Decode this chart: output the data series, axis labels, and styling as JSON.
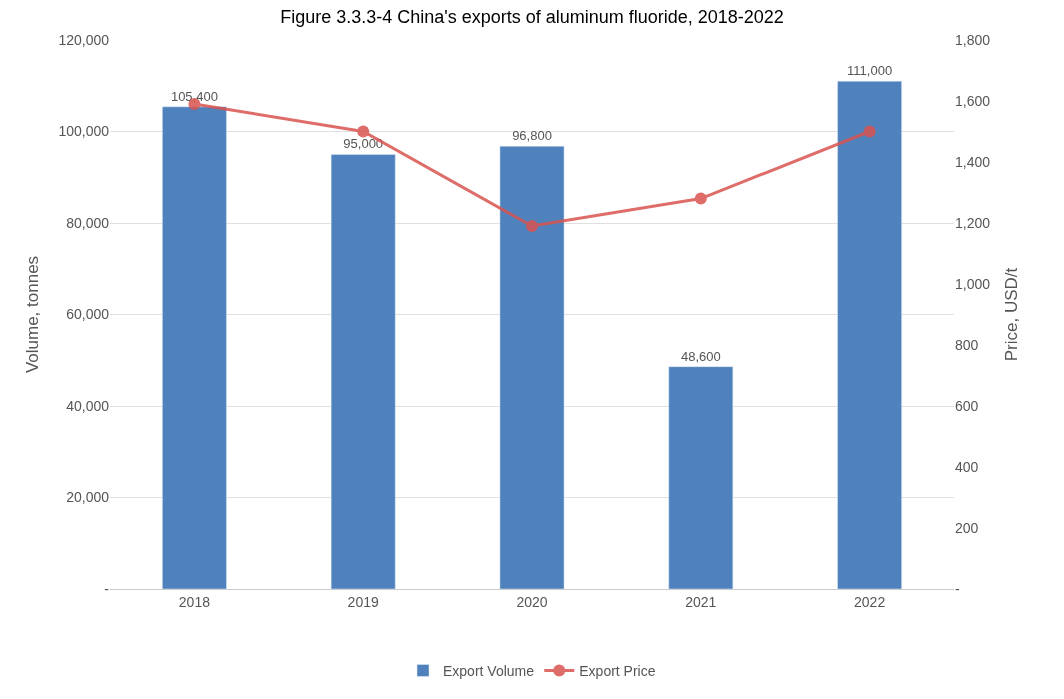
{
  "chart_data": {
    "type": "bar",
    "title": "Figure 3.3.3-4 China's exports of aluminum fluoride, 2018-2022",
    "categories": [
      "2018",
      "2019",
      "2020",
      "2021",
      "2022"
    ],
    "series": [
      {
        "name": "Export Volume",
        "color": "#4f81bd",
        "values": [
          105400,
          95000,
          96800,
          48600,
          111000
        ],
        "value_labels": [
          "105,400",
          "95,000",
          "96,800",
          "48,600",
          "111,000"
        ]
      },
      {
        "name": "Export Price",
        "type": "line",
        "axis": "y2",
        "color": "#d9534f",
        "values": [
          1590,
          1500,
          1190,
          1280,
          1500
        ],
        "marker": "circle"
      }
    ],
    "ylabel": "Volume, tonnes",
    "y2label": "Price, USD/t",
    "ylim": [
      0,
      120000
    ],
    "yticks": [
      {
        "value": 0,
        "label": "-"
      },
      {
        "value": 20000,
        "label": "20,000"
      },
      {
        "value": 40000,
        "label": "40,000"
      },
      {
        "value": 60000,
        "label": "60,000"
      },
      {
        "value": 80000,
        "label": "80,000"
      },
      {
        "value": 100000,
        "label": "100,000"
      },
      {
        "value": 120000,
        "label": "120,000"
      }
    ],
    "y2lim": [
      0,
      1800
    ],
    "y2ticks": [
      {
        "value": 0,
        "label": "-"
      },
      {
        "value": 200,
        "label": "200"
      },
      {
        "value": 400,
        "label": "400"
      },
      {
        "value": 600,
        "label": "600"
      },
      {
        "value": 800,
        "label": "800"
      },
      {
        "value": 1000,
        "label": "1,000"
      },
      {
        "value": 1200,
        "label": "1,200"
      },
      {
        "value": 1400,
        "label": "1,400"
      },
      {
        "value": 1600,
        "label": "1,600"
      },
      {
        "value": 1800,
        "label": "1,800"
      }
    ],
    "grid": "y",
    "legend": "bottom"
  }
}
